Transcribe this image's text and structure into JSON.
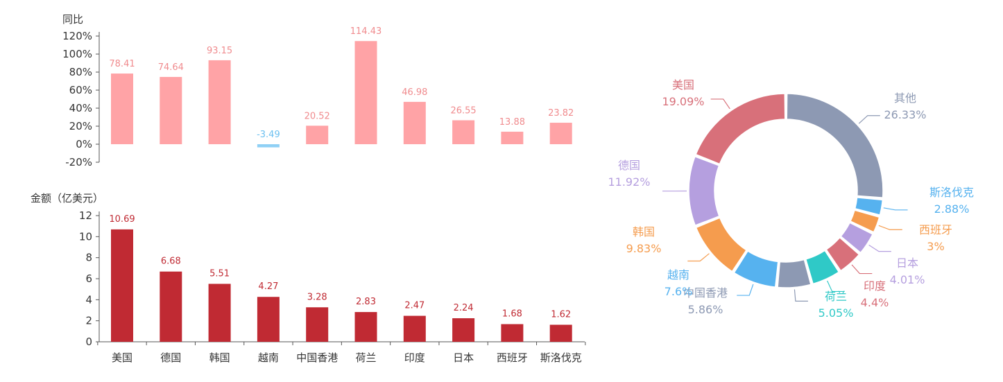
{
  "chart_data": [
    {
      "type": "bar",
      "ylabel": "同比",
      "categories": [
        "美国",
        "德国",
        "韩国",
        "越南",
        "中国香港",
        "荷兰",
        "印度",
        "日本",
        "西班牙",
        "斯洛伐克"
      ],
      "values": [
        78.41,
        74.64,
        93.15,
        -3.49,
        20.52,
        114.43,
        46.98,
        26.55,
        13.88,
        23.82
      ],
      "value_labels": [
        "78.41",
        "74.64",
        "93.15",
        "-3.49",
        "20.52",
        "114.43",
        "46.98",
        "26.55",
        "13.88",
        "23.82"
      ],
      "ylim": [
        -20,
        120
      ],
      "yticks": [
        -20,
        0,
        20,
        40,
        60,
        80,
        100,
        120
      ],
      "ytick_labels": [
        "-20%",
        "0%",
        "20%",
        "40%",
        "60%",
        "80%",
        "100%",
        "120%"
      ],
      "colors": {
        "positive": "#ffa3a6",
        "negative": "#8fd0f5",
        "positive_label": "#f08b8e",
        "negative_label": "#6cc0f0"
      },
      "grid": false
    },
    {
      "type": "bar",
      "ylabel": "金额（亿美元）",
      "categories": [
        "美国",
        "德国",
        "韩国",
        "越南",
        "中国香港",
        "荷兰",
        "印度",
        "日本",
        "西班牙",
        "斯洛伐克"
      ],
      "values": [
        10.69,
        6.68,
        5.51,
        4.27,
        3.28,
        2.83,
        2.47,
        2.24,
        1.68,
        1.62
      ],
      "value_labels": [
        "10.69",
        "6.68",
        "5.51",
        "4.27",
        "3.28",
        "2.83",
        "2.47",
        "2.24",
        "1.68",
        "1.62"
      ],
      "ylim": [
        0,
        12
      ],
      "yticks": [
        0,
        2,
        4,
        6,
        8,
        10,
        12
      ],
      "ytick_labels": [
        "0",
        "2",
        "4",
        "6",
        "8",
        "10",
        "12"
      ],
      "colors": {
        "bar": "#c02a33",
        "label": "#c02a33"
      },
      "grid": false
    },
    {
      "type": "pie",
      "donut": true,
      "slices": [
        {
          "name": "其他",
          "value": 26.33,
          "label": "26.33%",
          "color": "#8d99b3"
        },
        {
          "name": "斯洛伐克",
          "value": 2.88,
          "label": "2.88%",
          "color": "#56b2ef"
        },
        {
          "name": "西班牙",
          "value": 3,
          "label": "3%",
          "color": "#f59c4e"
        },
        {
          "name": "日本",
          "value": 4.01,
          "label": "4.01%",
          "color": "#b59fdf"
        },
        {
          "name": "印度",
          "value": 4.4,
          "label": "4.4%",
          "color": "#d8707a"
        },
        {
          "name": "荷兰",
          "value": 5.05,
          "label": "5.05%",
          "color": "#2fc9c7"
        },
        {
          "name": "中国香港",
          "value": 5.86,
          "label": "5.86%",
          "color": "#8d99b3"
        },
        {
          "name": "越南",
          "value": 7.6,
          "label": "7.6%",
          "color": "#56b2ef"
        },
        {
          "name": "韩国",
          "value": 9.83,
          "label": "9.83%",
          "color": "#f59c4e"
        },
        {
          "name": "德国",
          "value": 11.92,
          "label": "11.92%",
          "color": "#b59fdf"
        },
        {
          "name": "美国",
          "value": 19.09,
          "label": "19.09%",
          "color": "#d8707a"
        }
      ]
    }
  ]
}
